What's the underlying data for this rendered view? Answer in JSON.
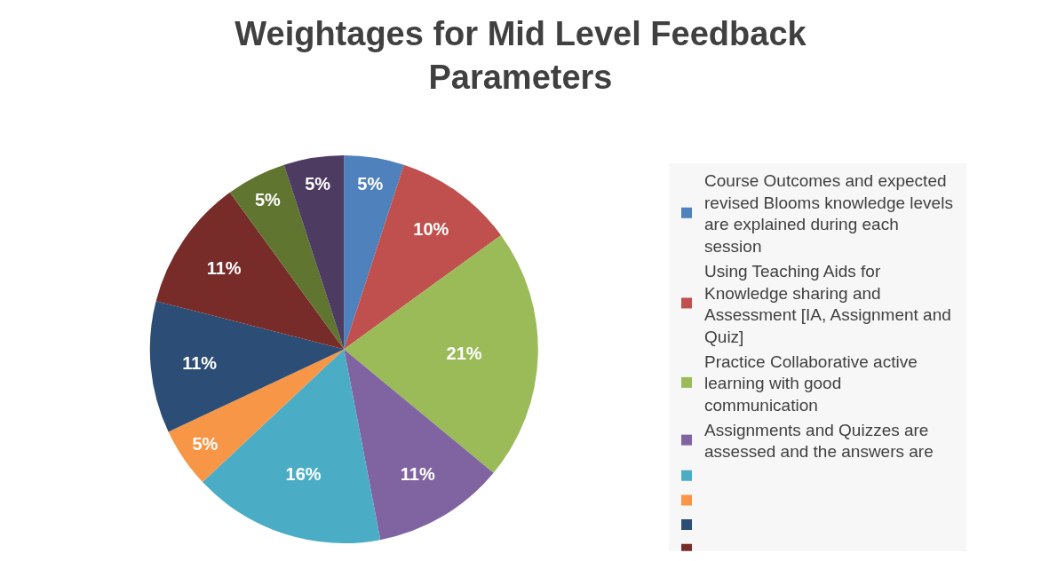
{
  "chart_data": {
    "type": "pie",
    "title": "Weightages for Mid Level Feedback Parameters",
    "categories": [
      "Course Outcomes and expected revised Blooms knowledge levels are explained during each session",
      "Using Teaching Aids for Knowledge sharing and Assessment [IA, Assignment and Quiz]",
      "Practice Collaborative active learning with good communication",
      "Assignments and Quizzes are assessed and the answers are",
      null,
      null,
      null,
      null,
      null,
      null
    ],
    "values": [
      5,
      10,
      21,
      11,
      16,
      5,
      11,
      11,
      5,
      5
    ],
    "value_labels": [
      "5%",
      "10%",
      "21%",
      "11%",
      "16%",
      "5%",
      "11%",
      "11%",
      "5%",
      "5%"
    ],
    "colors": [
      "#4f81bd",
      "#c0504d",
      "#9bbb59",
      "#8064a2",
      "#4bacc6",
      "#f79646",
      "#2c4d75",
      "#772c2a",
      "#5f7530",
      "#4d3b62"
    ],
    "legend": "right"
  }
}
